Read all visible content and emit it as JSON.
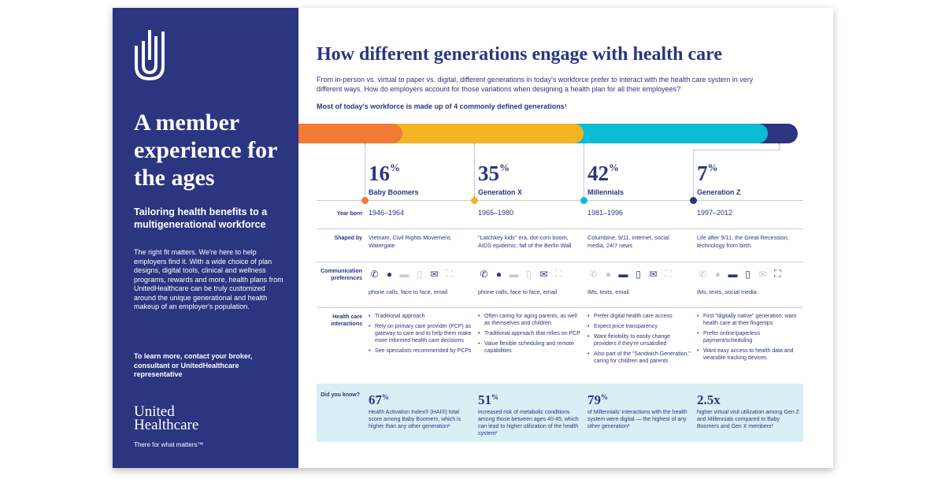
{
  "side": {
    "title": "A member experience for the ages",
    "subtitle": "Tailoring health benefits to a multigenerational workforce",
    "body": "The right fit matters. We're here to help employers find it. With a wide choice of plan designs, digital tools, clinical and wellness programs, rewards and more, health plans from UnitedHealthcare can be truly customized around the unique generational and health makeup of an employer's population.",
    "contact": "To learn more, contact your broker, consultant or UnitedHealthcare representative",
    "brand_line1": "United",
    "brand_line2": "Healthcare",
    "tagline": "There for what matters™"
  },
  "main": {
    "title": "How different generations engage with health care",
    "intro": "From in-person vs. virtual to paper vs. digital, different generations in today's workforce prefer to interact with the health care system in very different ways. How do employers account for those variations when designing a health plan for all their employees?",
    "bar_title": "Most of today's workforce is made up of 4 commonly defined generations¹"
  },
  "colors": {
    "navy": "#2b3580",
    "orange": "#f27a35",
    "yellow": "#f5b523",
    "teal": "#0cbcd4",
    "light_blue": "#d8eff5"
  },
  "row_labels": {
    "year_born": "Year born",
    "shaped_by": "Shaped by",
    "communication": "Communication preferences",
    "interactions": "Health care interactions",
    "did_you_know": "Did you know?"
  },
  "generations": [
    {
      "pct": "16",
      "pct_sign": "%",
      "name": "Baby Boomers",
      "years": "1946–1964",
      "shaped_by": "Vietnam, Civil Rights Movement, Watergate",
      "comm_text": "phone calls, face to face, email",
      "interactions": [
        "Traditional approach",
        "Rely on primary care provider (PCP) as gateway to care and to help them make more informed health care decisions",
        "See specialists recommended by PCPs"
      ],
      "stat": "67",
      "stat_sign": "%",
      "stat_text": "Health Activation Index® (HAI®) total score among Baby Boomers, which is higher than any other generation²"
    },
    {
      "pct": "35",
      "pct_sign": "%",
      "name": "Generation X",
      "years": "1965–1980",
      "shaped_by": "\"Latchkey kids\" era, dot-com boom, AIDS epidemic, fall of the Berlin Wall",
      "comm_text": "phone calls, face to face, email",
      "interactions": [
        "Often caring for aging parents, as well as themselves and children",
        "Traditional approach that relies on PCP",
        "Value flexible scheduling and remote capabilities"
      ],
      "stat": "51",
      "stat_sign": "%",
      "stat_text": "increased risk of metabolic conditions among those between ages 40-45, which can lead to higher utilization of the health system²"
    },
    {
      "pct": "42",
      "pct_sign": "%",
      "name": "Millennials",
      "years": "1981–1996",
      "shaped_by": "Columbine, 9/11, internet, social media, 24/7 news",
      "comm_text": "IMs, texts, email",
      "interactions": [
        "Prefer digital health care access",
        "Expect price transparency",
        "Want flexibility to easily change providers if they're unsatisfied",
        "Also part of the \"Sandwich Generation,\" caring for children and parents"
      ],
      "stat": "79",
      "stat_sign": "%",
      "stat_text": "of Millennials' interactions with the health system were digital — the highest of any other generation²"
    },
    {
      "pct": "7",
      "pct_sign": "%",
      "name": "Generation Z",
      "years": "1997–2012",
      "shaped_by": "Life after 9/11, the Great Recession, technology from birth",
      "comm_text": "IMs, texts, social media",
      "interactions": [
        "First \"digitally native\" generation; want health care at their fingertips",
        "Prefer online/paperless payment/scheduling",
        "Want easy access to health data and wearable tracking devices"
      ],
      "stat": "2.5x",
      "stat_sign": "",
      "stat_text": "higher virtual visit utilization among Gen Z and Millennials compared to Baby Boomers and Gen X members²"
    }
  ],
  "icons": {
    "names": [
      "phone-icon",
      "face-to-face-icon",
      "chat-icon",
      "mobile-icon",
      "email-icon",
      "social-media-icon"
    ],
    "glyphs": [
      "✆",
      "●",
      "▬",
      "▯",
      "✉",
      "⛶"
    ],
    "active": [
      [
        true,
        true,
        false,
        false,
        true,
        false
      ],
      [
        true,
        true,
        false,
        false,
        true,
        false
      ],
      [
        false,
        false,
        true,
        true,
        true,
        false
      ],
      [
        false,
        false,
        true,
        true,
        false,
        true
      ]
    ]
  }
}
